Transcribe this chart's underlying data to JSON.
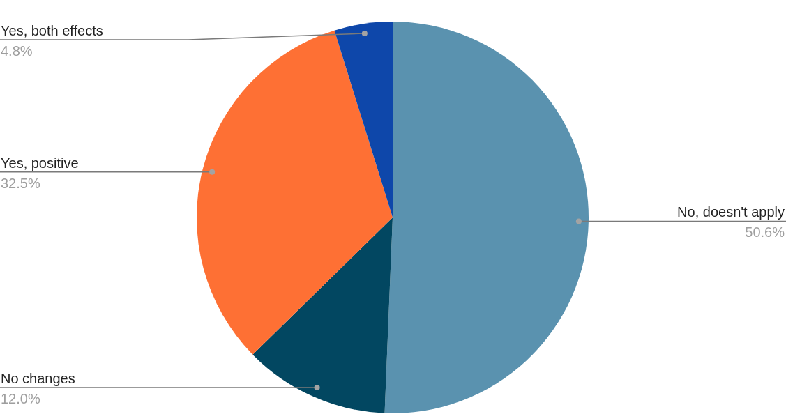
{
  "chart_data": {
    "type": "pie",
    "categories": [
      "No, doesn't apply",
      "No changes",
      "Yes, positive",
      "Yes, both effects"
    ],
    "values": [
      50.6,
      12.0,
      32.5,
      4.8
    ],
    "colors": [
      "#5a92af",
      "#024761",
      "#fe7034",
      "#0e47aa"
    ],
    "value_labels": [
      "50.6%",
      "12.0%",
      "32.5%",
      "4.8%"
    ]
  }
}
